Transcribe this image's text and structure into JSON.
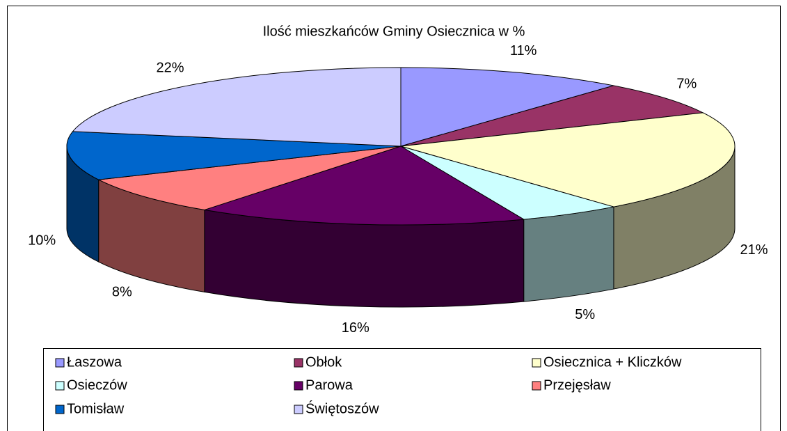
{
  "chart_data": {
    "type": "pie3d",
    "title": "Ilość mieszkańców Gminy Osiecznica w %",
    "categories": [
      "Łaszowa",
      "Obłok",
      "Osiecznica + Kliczków",
      "Osieczów",
      "Parowa",
      "Przejęsław",
      "Tomisław",
      "Świętoszów"
    ],
    "values": [
      11,
      7,
      21,
      5,
      16,
      8,
      10,
      22
    ],
    "value_labels": [
      "11%",
      "7%",
      "21%",
      "5%",
      "16%",
      "8%",
      "10%",
      "22%"
    ],
    "colors": [
      "#9999ff",
      "#993366",
      "#ffffcc",
      "#ccffff",
      "#660066",
      "#ff8080",
      "#0066cc",
      "#ccccff"
    ],
    "legend": "bottom"
  }
}
